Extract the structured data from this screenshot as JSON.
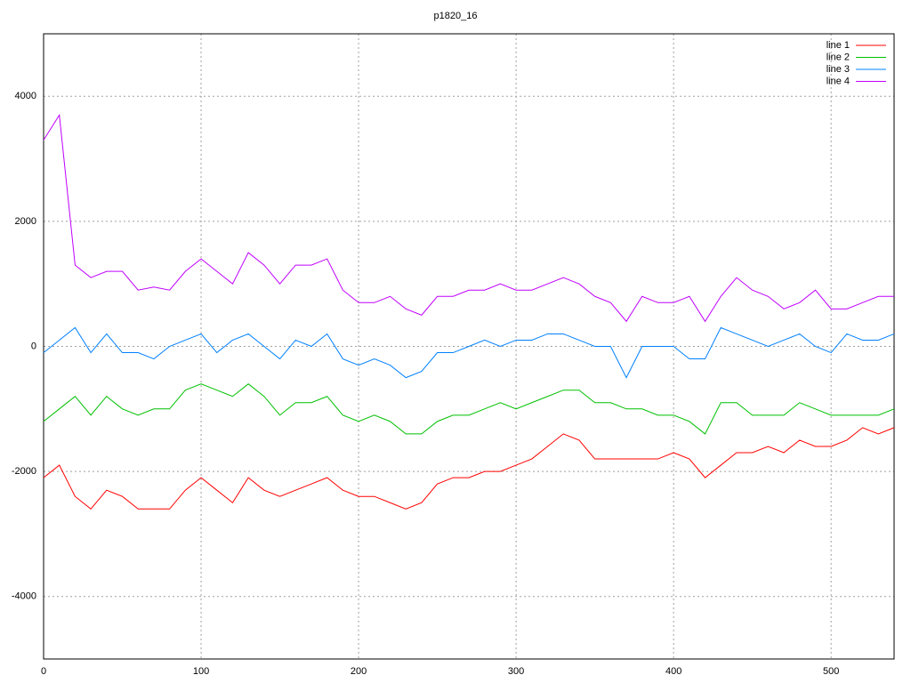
{
  "chart_data": {
    "type": "line",
    "title": "p1820_16",
    "x": [
      0,
      10,
      20,
      30,
      40,
      50,
      60,
      70,
      80,
      90,
      100,
      110,
      120,
      130,
      140,
      150,
      160,
      170,
      180,
      190,
      200,
      210,
      220,
      230,
      240,
      250,
      260,
      270,
      280,
      290,
      300,
      310,
      320,
      330,
      340,
      350,
      360,
      370,
      380,
      390,
      400,
      410,
      420,
      430,
      440,
      450,
      460,
      470,
      480,
      490,
      500,
      510,
      520,
      530,
      540
    ],
    "series": [
      {
        "name": "line 1",
        "color": "#ff0000",
        "values": [
          -2100,
          -1900,
          -2400,
          -2600,
          -2300,
          -2400,
          -2600,
          -2600,
          -2600,
          -2300,
          -2100,
          -2300,
          -2500,
          -2100,
          -2300,
          -2400,
          -2300,
          -2200,
          -2100,
          -2300,
          -2400,
          -2400,
          -2500,
          -2600,
          -2500,
          -2200,
          -2100,
          -2100,
          -2000,
          -2000,
          -1900,
          -1800,
          -1600,
          -1400,
          -1500,
          -1800,
          -1800,
          -1800,
          -1800,
          -1800,
          -1700,
          -1800,
          -2100,
          -1900,
          -1700,
          -1700,
          -1600,
          -1700,
          -1500,
          -1600,
          -1600,
          -1500,
          -1300,
          -1400,
          -1300
        ]
      },
      {
        "name": "line 2",
        "color": "#00c000",
        "values": [
          -1200,
          -1000,
          -800,
          -1100,
          -800,
          -1000,
          -1100,
          -1000,
          -1000,
          -700,
          -600,
          -700,
          -800,
          -600,
          -800,
          -1100,
          -900,
          -900,
          -800,
          -1100,
          -1200,
          -1100,
          -1200,
          -1400,
          -1400,
          -1200,
          -1100,
          -1100,
          -1000,
          -900,
          -1000,
          -900,
          -800,
          -700,
          -700,
          -900,
          -900,
          -1000,
          -1000,
          -1100,
          -1100,
          -1200,
          -1400,
          -900,
          -900,
          -1100,
          -1100,
          -1100,
          -900,
          -1000,
          -1100,
          -1100,
          -1100,
          -1100,
          -1000
        ]
      },
      {
        "name": "line 3",
        "color": "#0080ff",
        "values": [
          -100,
          100,
          300,
          -100,
          200,
          -100,
          -100,
          -200,
          0,
          100,
          200,
          -100,
          100,
          200,
          0,
          -200,
          100,
          0,
          200,
          -200,
          -300,
          -200,
          -300,
          -500,
          -400,
          -100,
          -100,
          0,
          100,
          0,
          100,
          100,
          200,
          200,
          100,
          0,
          0,
          -500,
          0,
          0,
          0,
          -200,
          -200,
          300,
          200,
          100,
          0,
          100,
          200,
          0,
          -100,
          200,
          100,
          100,
          200
        ]
      },
      {
        "name": "line 4",
        "color": "#c000ff",
        "values": [
          3300,
          3700,
          1300,
          1100,
          1200,
          1200,
          900,
          950,
          900,
          1200,
          1400,
          1200,
          1000,
          1500,
          1300,
          1000,
          1300,
          1300,
          1400,
          900,
          700,
          700,
          800,
          600,
          500,
          800,
          800,
          900,
          900,
          1000,
          900,
          900,
          1000,
          1100,
          1000,
          800,
          700,
          400,
          800,
          700,
          700,
          800,
          400,
          800,
          1100,
          900,
          800,
          600,
          700,
          900,
          600,
          600,
          700,
          800,
          800
        ]
      }
    ],
    "xlim": [
      0,
      540
    ],
    "xticks": [
      0,
      100,
      200,
      300,
      400,
      500
    ],
    "ylim": [
      -5000,
      5000
    ],
    "yticks": [
      -4000,
      -2000,
      0,
      2000,
      4000
    ],
    "grid": true,
    "legend": "top-right"
  }
}
